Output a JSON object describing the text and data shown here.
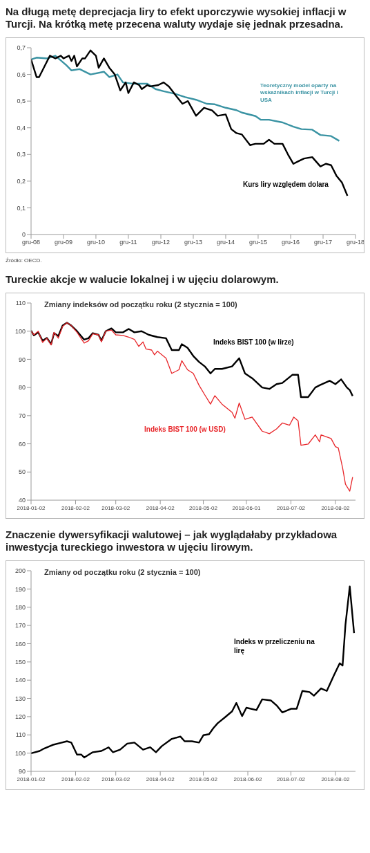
{
  "chart_data": [
    {
      "type": "line",
      "title": "Na długą metę deprecjacja liry to efekt uporczywie wysokiej inflacji w Turcji. Na krótką metę przecena waluty wydaje się jednak przesadna.",
      "annotations": [
        "Źródło: OECD."
      ],
      "xlim": [
        "2008-12",
        "2018-12"
      ],
      "xticks": [
        {
          "value": "2008-12",
          "label": "gru-08"
        },
        {
          "value": "2009-12",
          "label": "gru-09"
        },
        {
          "value": "2010-12",
          "label": "gru-10"
        },
        {
          "value": "2011-12",
          "label": "gru-11"
        },
        {
          "value": "2012-12",
          "label": "gru-12"
        },
        {
          "value": "2013-12",
          "label": "gru-13"
        },
        {
          "value": "2014-12",
          "label": "gru-14"
        },
        {
          "value": "2015-12",
          "label": "gru-15"
        },
        {
          "value": "2016-12",
          "label": "gru-16"
        },
        {
          "value": "2017-12",
          "label": "gru-17"
        },
        {
          "value": "2018-12",
          "label": "gru-18"
        }
      ],
      "ylim": [
        0,
        0.7
      ],
      "yticks": [
        0,
        {
          "value": 0.1,
          "label": "0,1"
        },
        {
          "value": 0.2,
          "label": "0,2"
        },
        {
          "value": 0.3,
          "label": "0,3"
        },
        {
          "value": 0.4,
          "label": "0,4"
        },
        {
          "value": 0.5,
          "label": "0,5"
        },
        {
          "value": 0.6,
          "label": "0,6"
        },
        {
          "value": 0.7,
          "label": "0,7"
        }
      ],
      "series": [
        {
          "name": "Teoretyczny model oparty na wskaźnikach inflacji w Turcji i USA",
          "color": "#3a93a3",
          "x": [
            "2008-12",
            "2009-02",
            "2009-06",
            "2009-09",
            "2010-01",
            "2010-03",
            "2010-06",
            "2010-10",
            "2011-03",
            "2011-05",
            "2011-08",
            "2011-10",
            "2012-02",
            "2012-07",
            "2012-10",
            "2013-01",
            "2013-05",
            "2013-09",
            "2014-01",
            "2014-05",
            "2014-08",
            "2014-12",
            "2015-04",
            "2015-06",
            "2015-11",
            "2016-01",
            "2016-04",
            "2016-09",
            "2017-01",
            "2017-04",
            "2017-08",
            "2017-11",
            "2018-03",
            "2018-06"
          ],
          "values": [
            0.656,
            0.663,
            0.66,
            0.67,
            0.635,
            0.615,
            0.62,
            0.6,
            0.61,
            0.59,
            0.6,
            0.57,
            0.565,
            0.565,
            0.545,
            0.537,
            0.528,
            0.515,
            0.505,
            0.49,
            0.488,
            0.475,
            0.466,
            0.457,
            0.444,
            0.43,
            0.43,
            0.42,
            0.404,
            0.395,
            0.393,
            0.373,
            0.369,
            0.351
          ]
        },
        {
          "name": "Kurs liry względem dolara",
          "color": "#000000",
          "x": [
            "2008-12",
            "2009-02",
            "2009-03",
            "2009-05",
            "2009-07",
            "2009-09",
            "2009-11",
            "2009-12",
            "2010-02",
            "2010-03",
            "2010-04",
            "2010-05",
            "2010-07",
            "2010-08",
            "2010-10",
            "2010-12",
            "2011-01",
            "2011-03",
            "2011-05",
            "2011-07",
            "2011-09",
            "2011-11",
            "2011-12",
            "2012-02",
            "2012-04",
            "2012-05",
            "2012-07",
            "2012-08",
            "2012-11",
            "2013-01",
            "2013-03",
            "2013-06",
            "2013-08",
            "2013-10",
            "2014-01",
            "2014-04",
            "2014-07",
            "2014-09",
            "2014-12",
            "2015-02",
            "2015-04",
            "2015-06",
            "2015-09",
            "2015-11",
            "2016-02",
            "2016-04",
            "2016-06",
            "2016-09",
            "2016-11",
            "2017-01",
            "2017-03",
            "2017-05",
            "2017-08",
            "2017-11",
            "2018-01",
            "2018-03",
            "2018-05",
            "2018-07",
            "2018-09"
          ],
          "values": [
            0.656,
            0.59,
            0.59,
            0.63,
            0.67,
            0.66,
            0.67,
            0.66,
            0.67,
            0.65,
            0.67,
            0.63,
            0.66,
            0.66,
            0.69,
            0.67,
            0.625,
            0.66,
            0.625,
            0.6,
            0.54,
            0.57,
            0.53,
            0.57,
            0.56,
            0.545,
            0.56,
            0.555,
            0.56,
            0.57,
            0.555,
            0.515,
            0.49,
            0.5,
            0.445,
            0.475,
            0.465,
            0.445,
            0.45,
            0.395,
            0.38,
            0.375,
            0.335,
            0.34,
            0.34,
            0.355,
            0.34,
            0.34,
            0.3,
            0.265,
            0.275,
            0.285,
            0.29,
            0.255,
            0.265,
            0.26,
            0.22,
            0.195,
            0.145
          ]
        }
      ]
    },
    {
      "type": "line",
      "title": "Tureckie akcje w walucie lokalnej i w ujęciu dolarowym.",
      "subtitle": "Zmiany indeksów od początku roku (2 stycznia = 100)",
      "xlim": [
        "2018-01-02",
        "2018-08-16"
      ],
      "xticks": [
        "2018-01-02",
        "2018-02-02",
        "2018-03-02",
        "2018-04-02",
        "2018-05-02",
        "2018-06-01",
        "2018-07-02",
        "2018-08-02"
      ],
      "ylim": [
        40,
        110
      ],
      "yticks": [
        40,
        50,
        60,
        70,
        80,
        90,
        100,
        110
      ],
      "series": [
        {
          "name": "Indeks BIST 100 (w lirze)",
          "color": "#000000",
          "x": [
            "2018-01-02",
            "2018-01-04",
            "2018-01-07",
            "2018-01-10",
            "2018-01-13",
            "2018-01-16",
            "2018-01-18",
            "2018-01-21",
            "2018-01-24",
            "2018-01-27",
            "2018-01-30",
            "2018-02-03",
            "2018-02-08",
            "2018-02-11",
            "2018-02-14",
            "2018-02-18",
            "2018-02-20",
            "2018-02-23",
            "2018-02-27",
            "2018-03-02",
            "2018-03-07",
            "2018-03-11",
            "2018-03-15",
            "2018-03-20",
            "2018-03-25",
            "2018-03-31",
            "2018-04-06",
            "2018-04-10",
            "2018-04-15",
            "2018-04-17",
            "2018-04-21",
            "2018-04-25",
            "2018-04-29",
            "2018-05-03",
            "2018-05-07",
            "2018-05-10",
            "2018-05-15",
            "2018-05-22",
            "2018-05-27",
            "2018-05-31",
            "2018-06-05",
            "2018-06-12",
            "2018-06-17",
            "2018-06-22",
            "2018-06-26",
            "2018-07-03",
            "2018-07-07",
            "2018-07-09",
            "2018-07-14",
            "2018-07-19",
            "2018-07-22",
            "2018-07-29",
            "2018-08-02",
            "2018-08-06",
            "2018-08-10",
            "2018-08-12",
            "2018-08-14"
          ],
          "values": [
            100.2,
            98.5,
            99.6,
            96.6,
            97.6,
            95.4,
            99.3,
            98.3,
            102,
            103,
            102,
            100,
            97,
            97.5,
            99.3,
            98.7,
            96.6,
            100,
            101,
            99.6,
            99.6,
            100.8,
            99.6,
            100,
            98.7,
            97.9,
            97.5,
            93.3,
            93.3,
            95.4,
            94.1,
            91.2,
            89.1,
            87.5,
            85,
            86.6,
            86.6,
            87.5,
            90.4,
            85,
            83.3,
            80,
            79.5,
            81.2,
            81.6,
            84.5,
            84.5,
            76.6,
            76.6,
            80,
            80.8,
            82.4,
            81.2,
            82.9,
            80,
            79.1,
            77
          ]
        },
        {
          "name": "Indeks BIST 100 (w USD)",
          "color": "#e8262a",
          "x": [
            "2018-01-02",
            "2018-01-04",
            "2018-01-07",
            "2018-01-10",
            "2018-01-13",
            "2018-01-16",
            "2018-01-18",
            "2018-01-21",
            "2018-01-24",
            "2018-01-27",
            "2018-01-30",
            "2018-02-03",
            "2018-02-08",
            "2018-02-11",
            "2018-02-14",
            "2018-02-18",
            "2018-02-20",
            "2018-02-23",
            "2018-02-27",
            "2018-03-02",
            "2018-03-07",
            "2018-03-11",
            "2018-03-15",
            "2018-03-18",
            "2018-03-21",
            "2018-03-23",
            "2018-03-27",
            "2018-03-29",
            "2018-03-31",
            "2018-04-06",
            "2018-04-10",
            "2018-04-15",
            "2018-04-17",
            "2018-04-21",
            "2018-04-25",
            "2018-04-29",
            "2018-05-03",
            "2018-05-07",
            "2018-05-10",
            "2018-05-15",
            "2018-05-22",
            "2018-05-24",
            "2018-05-27",
            "2018-05-31",
            "2018-06-05",
            "2018-06-12",
            "2018-06-17",
            "2018-06-22",
            "2018-06-26",
            "2018-07-01",
            "2018-07-04",
            "2018-07-07",
            "2018-07-09",
            "2018-07-14",
            "2018-07-19",
            "2018-07-22",
            "2018-07-23",
            "2018-07-30",
            "2018-08-02",
            "2018-08-04",
            "2018-08-07",
            "2018-08-09",
            "2018-08-12",
            "2018-08-14"
          ],
          "values": [
            100,
            98.7,
            100,
            96,
            97.5,
            95.1,
            99.6,
            97.5,
            101.7,
            103,
            102,
            99.6,
            95.8,
            96.6,
            99.1,
            98.7,
            96.2,
            100,
            100.4,
            98.7,
            98.5,
            97.9,
            97.1,
            94.6,
            96.2,
            93.7,
            93.3,
            91.6,
            92.9,
            90.4,
            85,
            86.3,
            89.5,
            86.3,
            85,
            80.8,
            77.4,
            74.1,
            77.1,
            74.1,
            71.2,
            69.1,
            74.5,
            68.7,
            69.5,
            64.5,
            63.6,
            65.3,
            67.4,
            66.6,
            69.5,
            68.2,
            59.5,
            59.9,
            63.2,
            60.7,
            63.2,
            61.9,
            59,
            58.6,
            51.5,
            45.7,
            43.2,
            48.2
          ]
        }
      ]
    },
    {
      "type": "line",
      "title": "Znaczenie dywersyfikacji walutowej – jak wyglądałaby przykładowa inwestycja tureckiego inwestora w ujęciu lirowym.",
      "subtitle": "Zmiany od początku roku (2 stycznia = 100)",
      "xlim": [
        "2018-01-02",
        "2018-08-16"
      ],
      "xticks": [
        "2018-01-02",
        "2018-02-02",
        "2018-03-02",
        "2018-04-02",
        "2018-05-02",
        "2018-06-02",
        "2018-07-02",
        "2018-08-02"
      ],
      "ylim": [
        90,
        200
      ],
      "yticks": [
        90,
        100,
        110,
        120,
        130,
        140,
        150,
        160,
        170,
        180,
        190,
        200
      ],
      "series": [
        {
          "name": "Indeks w przeliczeniu na lirę",
          "color": "#000000",
          "x": [
            "2018-01-02",
            "2018-01-08",
            "2018-01-11",
            "2018-01-17",
            "2018-01-22",
            "2018-01-27",
            "2018-01-30",
            "2018-02-03",
            "2018-02-06",
            "2018-02-08",
            "2018-02-14",
            "2018-02-20",
            "2018-02-25",
            "2018-02-28",
            "2018-03-05",
            "2018-03-10",
            "2018-03-15",
            "2018-03-21",
            "2018-03-26",
            "2018-03-30",
            "2018-04-03",
            "2018-04-10",
            "2018-04-16",
            "2018-04-19",
            "2018-04-24",
            "2018-04-29",
            "2018-05-02",
            "2018-05-06",
            "2018-05-09",
            "2018-05-12",
            "2018-05-17",
            "2018-05-22",
            "2018-05-25",
            "2018-05-29",
            "2018-06-01",
            "2018-06-08",
            "2018-06-12",
            "2018-06-18",
            "2018-06-22",
            "2018-06-26",
            "2018-07-02",
            "2018-07-06",
            "2018-07-10",
            "2018-07-15",
            "2018-07-18",
            "2018-07-23",
            "2018-07-27",
            "2018-08-01",
            "2018-08-05",
            "2018-08-07",
            "2018-08-09",
            "2018-08-12",
            "2018-08-15"
          ],
          "values": [
            99.9,
            101.2,
            102.5,
            104.5,
            105.5,
            106.5,
            105.8,
            99.2,
            99.2,
            97.6,
            100.5,
            101.2,
            103.2,
            100.5,
            101.9,
            105.2,
            105.8,
            101.9,
            103.2,
            100.5,
            103.8,
            107.8,
            109.1,
            106.5,
            106.5,
            105.8,
            109.8,
            110.4,
            113.7,
            116.4,
            119.6,
            122.9,
            127.5,
            120.3,
            124.9,
            123.6,
            129.5,
            128.9,
            126.2,
            122.3,
            124.3,
            124.3,
            134.1,
            133.5,
            131.5,
            135.5,
            134.1,
            142.7,
            149.3,
            148,
            170.4,
            191.4,
            165.8
          ]
        }
      ]
    }
  ]
}
